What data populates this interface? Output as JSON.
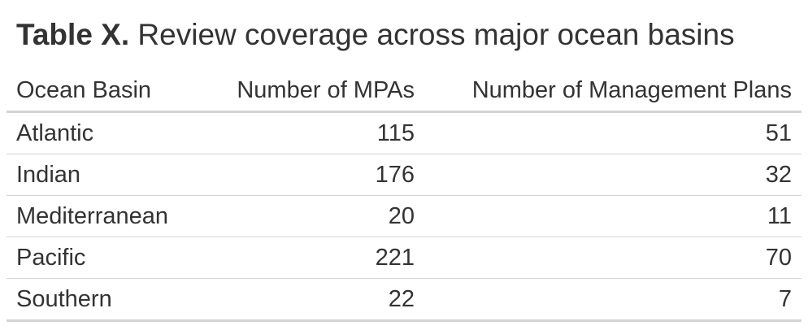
{
  "table": {
    "title_bold": "Table X.",
    "title_rest": " Review coverage across major ocean basins",
    "columns": [
      "Ocean Basin",
      "Number of MPAs",
      "Number of Management Plans"
    ],
    "rows": [
      {
        "basin": "Atlantic",
        "mpas": "115",
        "plans": "51"
      },
      {
        "basin": "Indian",
        "mpas": "176",
        "plans": "32"
      },
      {
        "basin": "Mediterranean",
        "mpas": "20",
        "plans": "11"
      },
      {
        "basin": "Pacific",
        "mpas": "221",
        "plans": "70"
      },
      {
        "basin": "Southern",
        "mpas": "22",
        "plans": "7"
      }
    ],
    "colors": {
      "text": "#333333",
      "rule": "#d3d3d3"
    }
  }
}
